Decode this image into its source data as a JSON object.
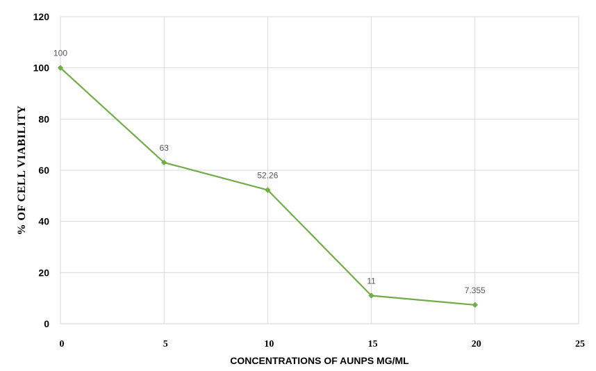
{
  "chart_data": {
    "type": "line",
    "title": "",
    "xlabel": "CONCENTRATIONS OF AUNPS MG/ML",
    "ylabel": "% OF CELL VIABILITY",
    "x": [
      0,
      5,
      10,
      15,
      20
    ],
    "xlim": [
      0,
      25
    ],
    "ylim": [
      0,
      120
    ],
    "xticks": [
      "0",
      "5",
      "10",
      "15",
      "20",
      "25"
    ],
    "yticks": [
      "0",
      "20",
      "40",
      "60",
      "80",
      "100",
      "120"
    ],
    "grid": true,
    "series": [
      {
        "values": [
          100,
          63,
          52.26,
          11,
          7.355
        ],
        "data_labels": [
          "100",
          "63",
          "52.26",
          "11",
          "7.355"
        ],
        "color": "#70AD47"
      }
    ]
  }
}
